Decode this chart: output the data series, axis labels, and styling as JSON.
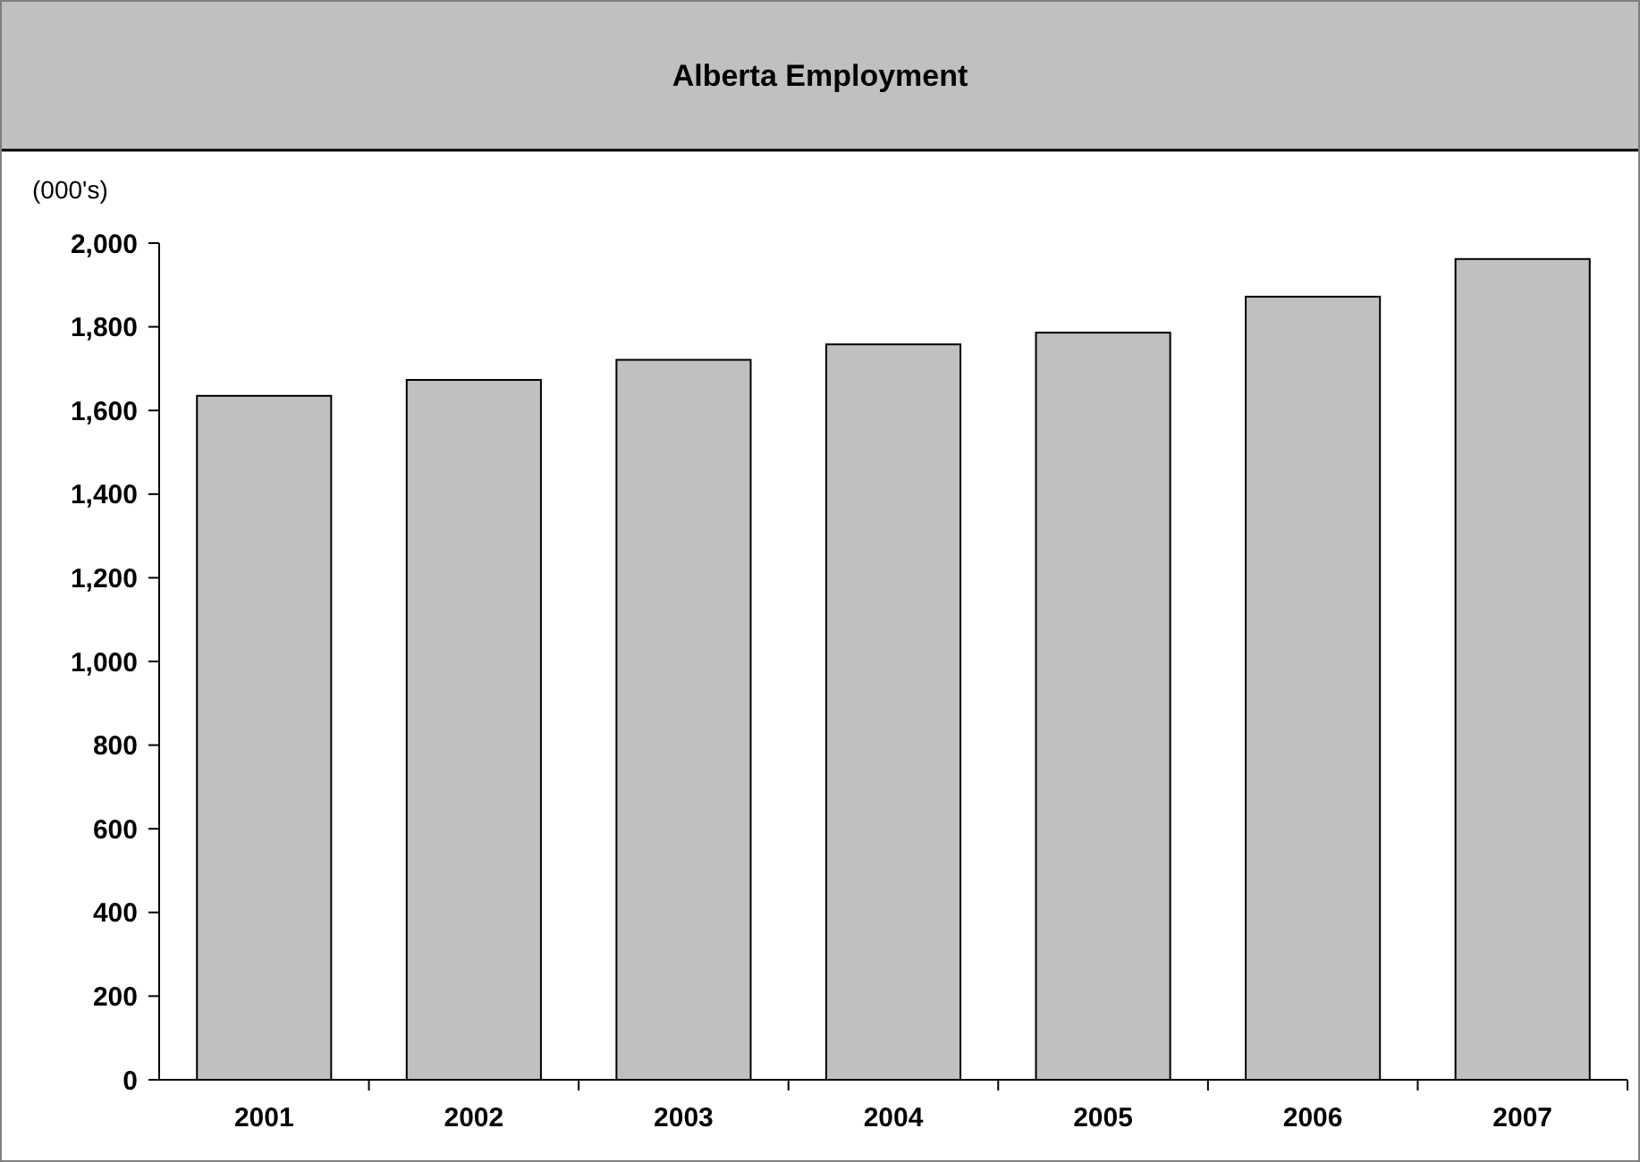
{
  "chart_data": {
    "type": "bar",
    "title": "Alberta Employment",
    "ylabel": "(000's)",
    "categories": [
      "2001",
      "2002",
      "2003",
      "2004",
      "2005",
      "2006",
      "2007"
    ],
    "values": [
      1635,
      1673,
      1721,
      1758,
      1786,
      1872,
      1962
    ],
    "color": "#c0c0c0",
    "ylim": [
      0,
      2000
    ],
    "yticks": [
      {
        "value": 0,
        "label": "0"
      },
      {
        "value": 200,
        "label": "200"
      },
      {
        "value": 400,
        "label": "400"
      },
      {
        "value": 600,
        "label": "600"
      },
      {
        "value": 800,
        "label": "800"
      },
      {
        "value": 1000,
        "label": "1,000"
      },
      {
        "value": 1200,
        "label": "1,200"
      },
      {
        "value": 1400,
        "label": "1,400"
      },
      {
        "value": 1600,
        "label": "1,600"
      },
      {
        "value": 1800,
        "label": "1,800"
      },
      {
        "value": 2000,
        "label": "2,000"
      }
    ],
    "grid": false
  }
}
